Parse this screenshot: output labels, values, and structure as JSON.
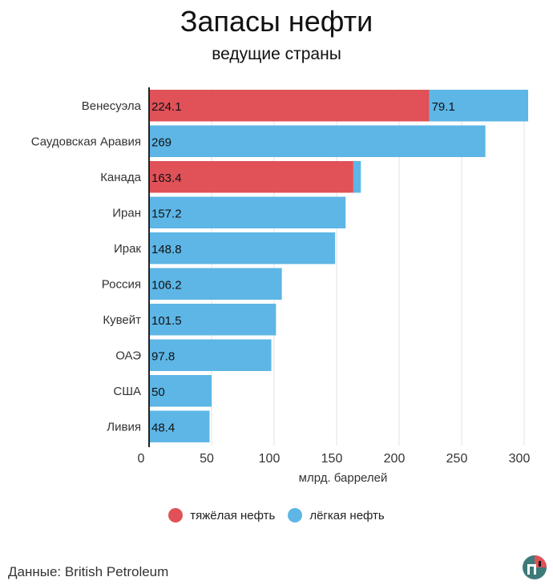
{
  "header": {
    "title": "Запасы нефти",
    "subtitle": "ведущие страны"
  },
  "legend": {
    "heavy_label": "тяжёлая нефть",
    "light_label": "лёгкая нефть"
  },
  "footer": {
    "source": "Данные: British Petroleum"
  },
  "colors": {
    "heavy": "#e05158",
    "light": "#5db6e6",
    "grid": "#e3e3e3",
    "axis": "#222222"
  },
  "chart_data": {
    "type": "bar",
    "orientation": "horizontal",
    "stacked": true,
    "title": "Запасы нефти",
    "subtitle": "ведущие страны",
    "xlabel": "млрд. баррелей",
    "ylabel": "",
    "xlim": [
      0,
      300
    ],
    "xticks": [
      0,
      50,
      100,
      150,
      200,
      250,
      300
    ],
    "grid": true,
    "legend_position": "bottom",
    "categories": [
      "Венесуэла",
      "Саудовская Аравия",
      "Канада",
      "Иран",
      "Ирак",
      "Россия",
      "Кувейт",
      "ОАЭ",
      "США",
      "Ливия"
    ],
    "series": [
      {
        "name": "тяжёлая нефть",
        "values": [
          224.1,
          0,
          163.4,
          0,
          0,
          0,
          0,
          0,
          0,
          0
        ],
        "labels": [
          "224.1",
          "",
          "163.4",
          "",
          "",
          "",
          "",
          "",
          "",
          ""
        ]
      },
      {
        "name": "лёгкая нефть",
        "values": [
          79.1,
          269,
          6,
          157.2,
          148.8,
          106.2,
          101.5,
          97.8,
          50,
          48.4
        ],
        "labels": [
          "79.1",
          "269",
          "",
          "157.2",
          "148.8",
          "106.2",
          "101.5",
          "97.8",
          "50",
          "48.4"
        ]
      }
    ]
  }
}
